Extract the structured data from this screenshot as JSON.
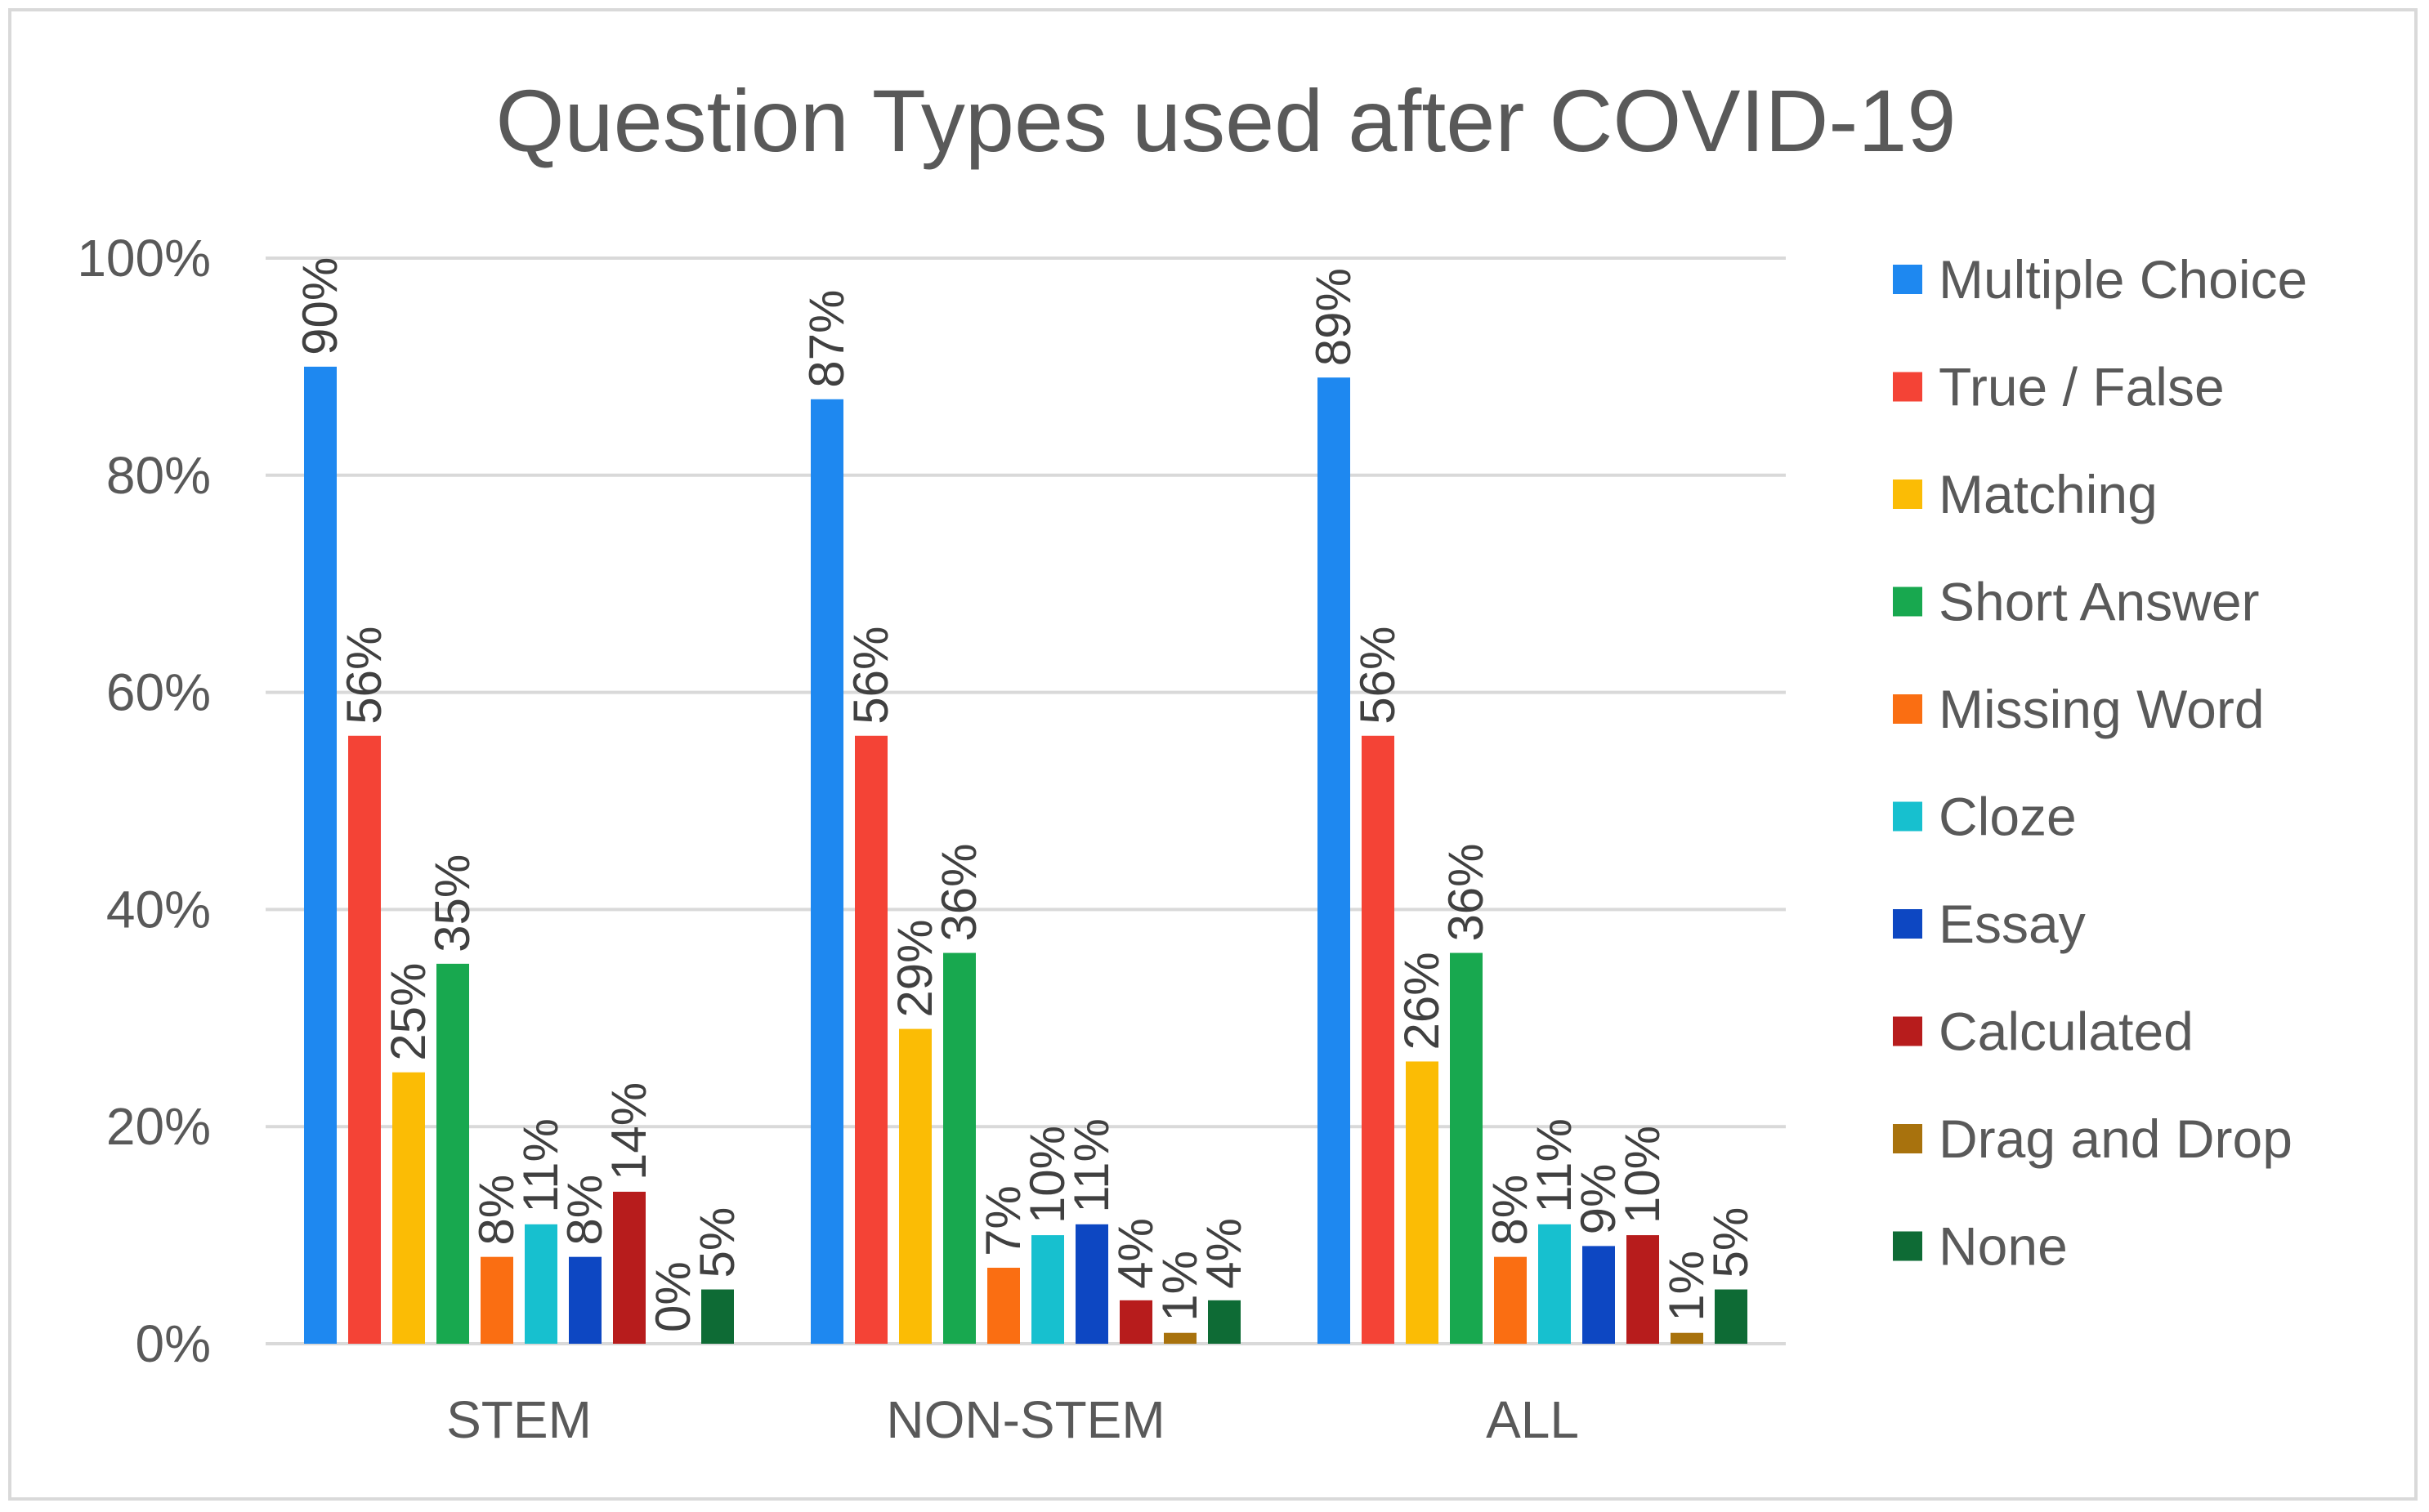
{
  "chart_data": {
    "type": "bar",
    "title": "Question Types used after COVID-19",
    "xlabel": "",
    "ylabel": "",
    "ylim": [
      0,
      100
    ],
    "y_ticks": [
      "0%",
      "20%",
      "40%",
      "60%",
      "80%",
      "100%"
    ],
    "categories": [
      "STEM",
      "NON-STEM",
      "ALL"
    ],
    "legend_position": "right",
    "series": [
      {
        "name": "Multiple Choice",
        "color": "#1e88f0",
        "values": [
          90,
          87,
          89
        ],
        "labels": [
          "90%",
          "87%",
          "89%"
        ]
      },
      {
        "name": "True / False",
        "color": "#f44336",
        "values": [
          56,
          56,
          56
        ],
        "labels": [
          "56%",
          "56%",
          "56%"
        ]
      },
      {
        "name": "Matching",
        "color": "#fbbc05",
        "values": [
          25,
          29,
          26
        ],
        "labels": [
          "25%",
          "29%",
          "26%"
        ]
      },
      {
        "name": "Short Answer",
        "color": "#18a84f",
        "values": [
          35,
          36,
          36
        ],
        "labels": [
          "35%",
          "36%",
          "36%"
        ]
      },
      {
        "name": "Missing Word",
        "color": "#fa6e12",
        "values": [
          8,
          7,
          8
        ],
        "labels": [
          "8%",
          "7%",
          "8%"
        ]
      },
      {
        "name": "Cloze",
        "color": "#17c0cf",
        "values": [
          11,
          10,
          11
        ],
        "labels": [
          "11%",
          "10%",
          "11%"
        ]
      },
      {
        "name": "Essay",
        "color": "#0d47c2",
        "values": [
          8,
          11,
          9
        ],
        "labels": [
          "8%",
          "11%",
          "9%"
        ]
      },
      {
        "name": "Calculated",
        "color": "#b71c1c",
        "values": [
          14,
          4,
          10
        ],
        "labels": [
          "14%",
          "4%",
          "10%"
        ]
      },
      {
        "name": "Drag and Drop",
        "color": "#a8720d",
        "values": [
          0,
          1,
          1
        ],
        "labels": [
          "0%",
          "1%",
          "1%"
        ]
      },
      {
        "name": "None",
        "color": "#0e6b35",
        "values": [
          5,
          4,
          5
        ],
        "labels": [
          "5%",
          "4%",
          "5%"
        ]
      }
    ]
  }
}
